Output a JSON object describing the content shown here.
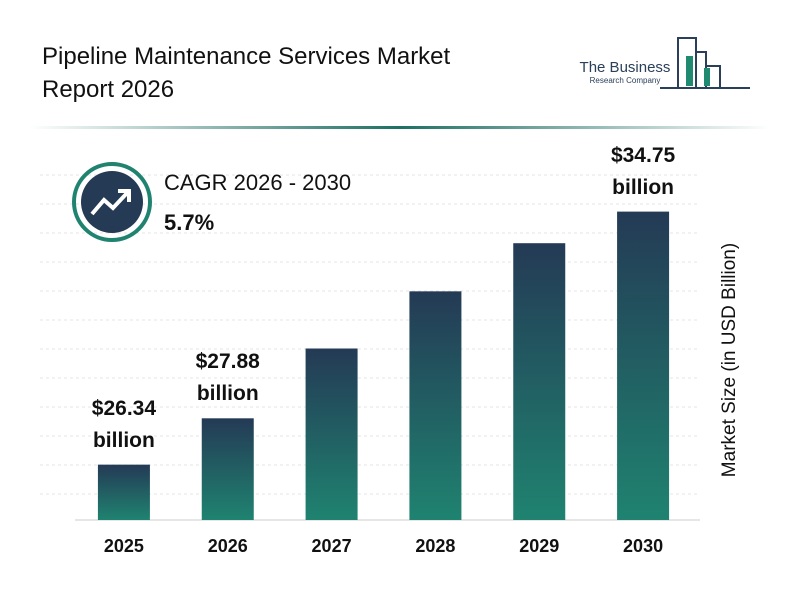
{
  "chart_data": {
    "type": "bar",
    "title": "Pipeline Maintenance Services Market Report 2026",
    "logo": {
      "line1": "The Business",
      "line2": "Research Company"
    },
    "cagr": {
      "label": "CAGR 2026 - 2030",
      "value": "5.7%"
    },
    "y_label": "Market Size (in USD Billion)",
    "categories": [
      "2025",
      "2026",
      "2027",
      "2028",
      "2029",
      "2030"
    ],
    "values": [
      26.34,
      27.88,
      30.2,
      32.1,
      33.7,
      34.75
    ],
    "value_labels": [
      "$26.34 billion",
      "$27.88 billion",
      null,
      null,
      null,
      "$34.75 billion"
    ],
    "colors": [
      "#243a55",
      "#1f8370"
    ],
    "ylim": [
      24.5,
      36
    ]
  }
}
